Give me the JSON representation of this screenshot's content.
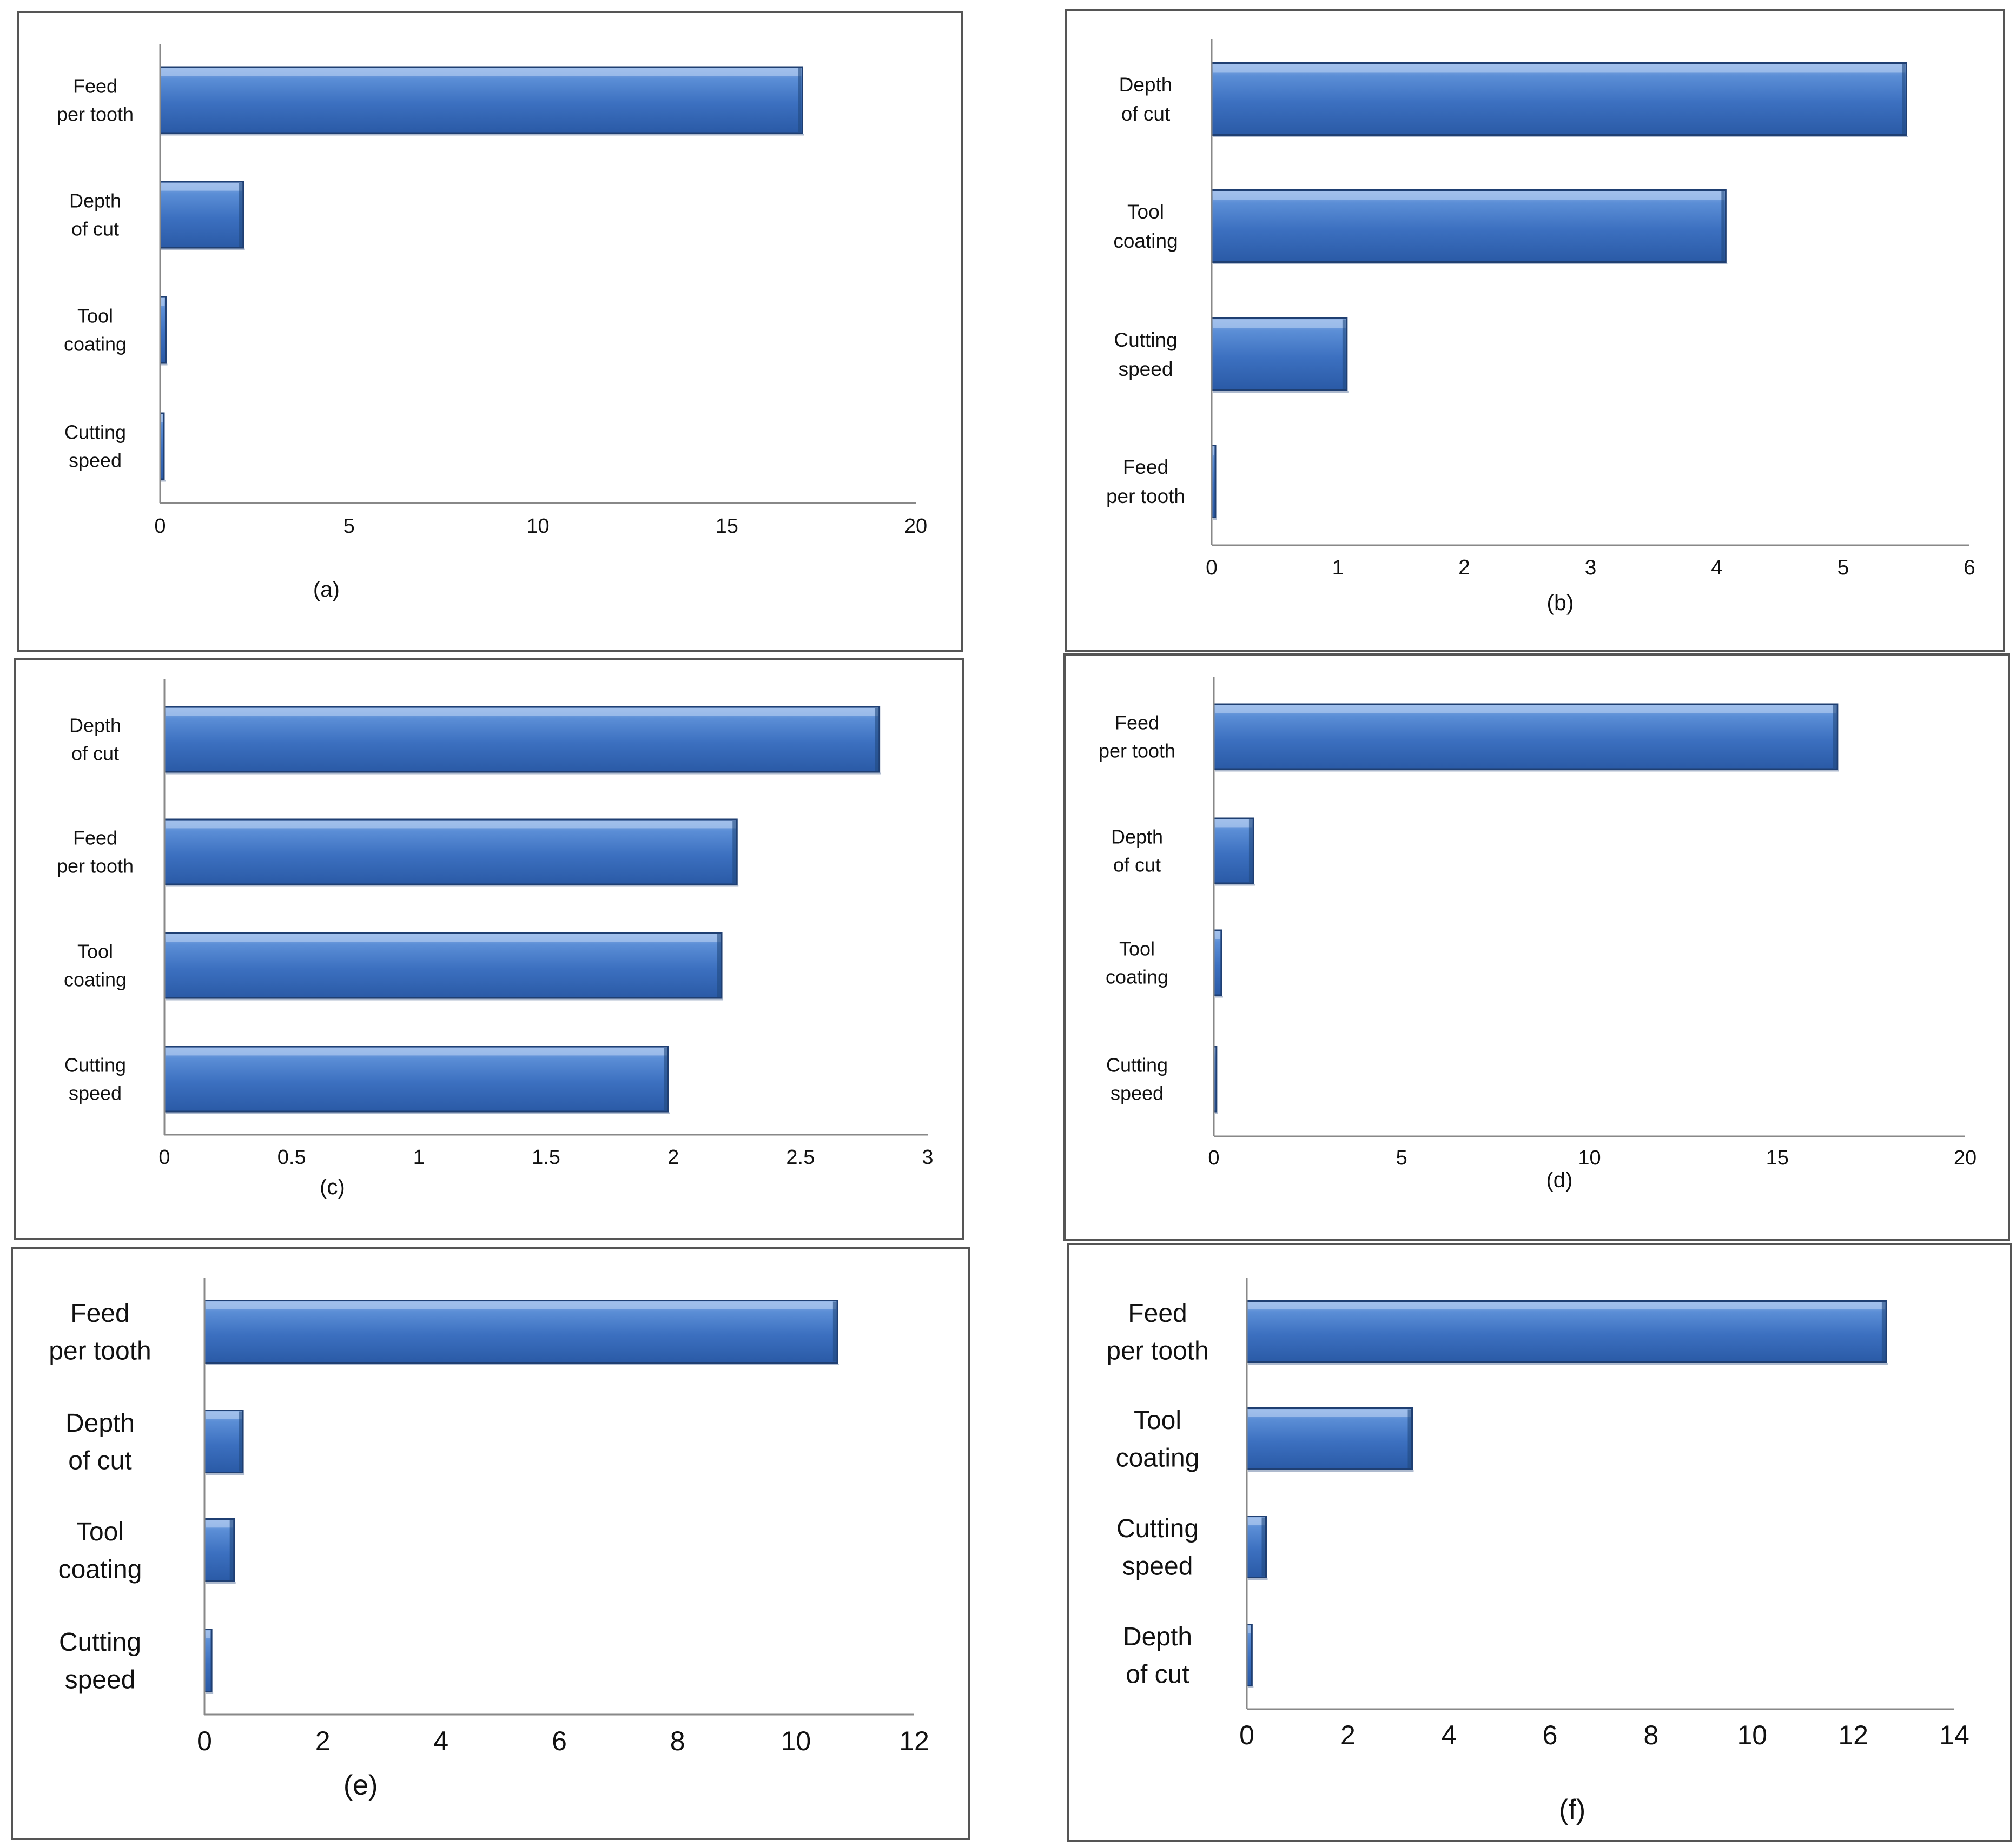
{
  "bar_color": "#4A7EC8",
  "bar_edge_color": "#1F3F72",
  "chart_data": [
    {
      "type": "bar",
      "orientation": "horizontal",
      "caption": "(a)",
      "categories": [
        [
          "Feed",
          "per tooth"
        ],
        [
          "Depth",
          "of cut"
        ],
        [
          "Tool",
          "coating"
        ],
        [
          "Cutting",
          "speed"
        ]
      ],
      "values": [
        17.0,
        2.2,
        0.15,
        0.1
      ],
      "xlim": [
        0,
        20
      ],
      "xticks": [
        0,
        5,
        10,
        15,
        20
      ],
      "xtick_labels": [
        "0",
        "5",
        "10",
        "15",
        "20"
      ],
      "title": "",
      "xlabel": "",
      "ylabel": ""
    },
    {
      "type": "bar",
      "orientation": "horizontal",
      "caption": "(b)",
      "categories": [
        [
          "Depth",
          "of cut"
        ],
        [
          "Tool",
          "coating"
        ],
        [
          "Cutting",
          "speed"
        ],
        [
          "Feed",
          "per tooth"
        ]
      ],
      "values": [
        5.5,
        4.07,
        1.07,
        0.03
      ],
      "xlim": [
        0,
        6
      ],
      "xticks": [
        0,
        1,
        2,
        3,
        4,
        5,
        6
      ],
      "xtick_labels": [
        "0",
        "1",
        "2",
        "3",
        "4",
        "5",
        "6"
      ],
      "title": "",
      "xlabel": "",
      "ylabel": ""
    },
    {
      "type": "bar",
      "orientation": "horizontal",
      "caption": "(c)",
      "categories": [
        [
          "Depth",
          "of cut"
        ],
        [
          "Feed",
          "per tooth"
        ],
        [
          "Tool",
          "coating"
        ],
        [
          "Cutting",
          "speed"
        ]
      ],
      "values": [
        2.81,
        2.25,
        2.19,
        1.98
      ],
      "xlim": [
        0,
        3
      ],
      "xticks": [
        0,
        0.5,
        1,
        1.5,
        2,
        2.5,
        3
      ],
      "xtick_labels": [
        "0",
        "0.5",
        "1",
        "1.5",
        "2",
        "2.5",
        "3"
      ],
      "title": "",
      "xlabel": "",
      "ylabel": ""
    },
    {
      "type": "bar",
      "orientation": "horizontal",
      "caption": "(d)",
      "categories": [
        [
          "Feed",
          "per tooth"
        ],
        [
          "Depth",
          "of cut"
        ],
        [
          "Tool",
          "coating"
        ],
        [
          "Cutting",
          "speed"
        ]
      ],
      "values": [
        16.6,
        1.05,
        0.2,
        0.07
      ],
      "xlim": [
        0,
        20
      ],
      "xticks": [
        0,
        5,
        10,
        15,
        20
      ],
      "xtick_labels": [
        "0",
        "5",
        "10",
        "15",
        "20"
      ],
      "title": "",
      "xlabel": "",
      "ylabel": ""
    },
    {
      "type": "bar",
      "orientation": "horizontal",
      "caption": "(e)",
      "categories": [
        [
          "Feed",
          "per tooth"
        ],
        [
          "Depth",
          "of cut"
        ],
        [
          "Tool",
          "coating"
        ],
        [
          "Cutting",
          "speed"
        ]
      ],
      "values": [
        10.7,
        0.65,
        0.5,
        0.12
      ],
      "xlim": [
        0,
        12
      ],
      "xticks": [
        0,
        2,
        4,
        6,
        8,
        10,
        12
      ],
      "xtick_labels": [
        "0",
        "2",
        "4",
        "6",
        "8",
        "10",
        "12"
      ],
      "title": "",
      "xlabel": "",
      "ylabel": ""
    },
    {
      "type": "bar",
      "orientation": "horizontal",
      "caption": "(f)",
      "categories": [
        [
          "Feed",
          "per tooth"
        ],
        [
          "Tool",
          "coating"
        ],
        [
          "Cutting",
          "speed"
        ],
        [
          "Depth",
          "of cut"
        ]
      ],
      "values": [
        12.65,
        3.27,
        0.38,
        0.1
      ],
      "xlim": [
        0,
        14
      ],
      "xticks": [
        0,
        2,
        4,
        6,
        8,
        10,
        12,
        14
      ],
      "xtick_labels": [
        "0",
        "2",
        "4",
        "6",
        "8",
        "10",
        "12",
        "14"
      ],
      "title": "",
      "xlabel": "",
      "ylabel": ""
    }
  ]
}
